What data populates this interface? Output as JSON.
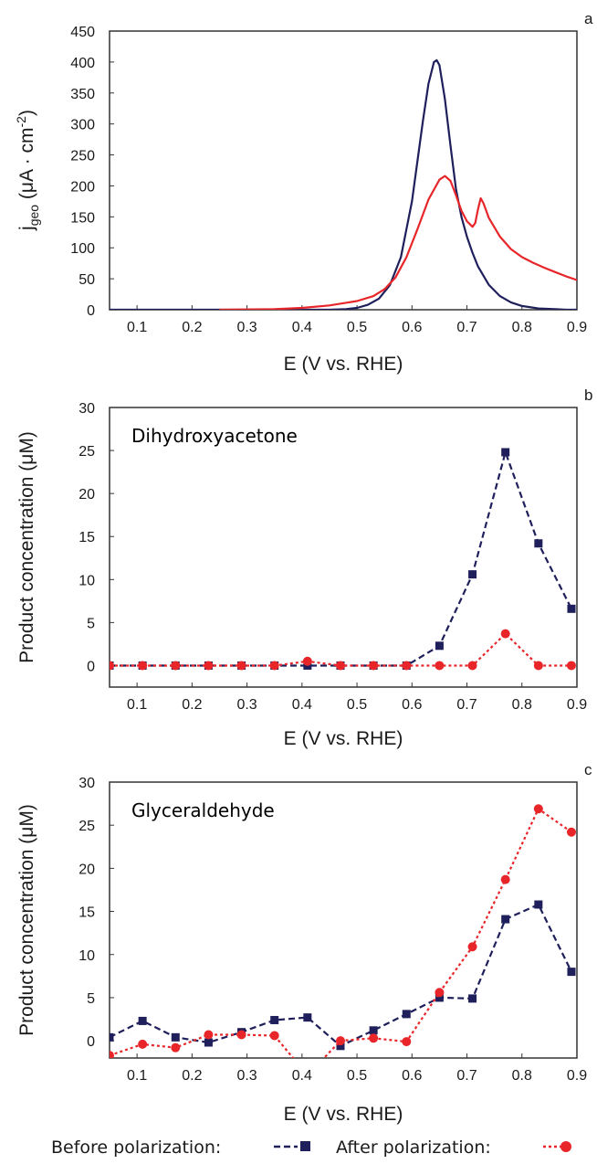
{
  "chart_data": [
    {
      "type": "line",
      "panel_label": "a",
      "xlabel": "E (V vs. RHE)",
      "ylabel": "j",
      "ylabel_sub": "geo",
      "ylabel_rest": " (μA · cm",
      "ylabel_sup": "-2",
      "ylabel_close": ")",
      "xlim": [
        0.05,
        0.9
      ],
      "ylim": [
        0,
        450
      ],
      "xticks": [
        "0.1",
        "0.2",
        "0.3",
        "0.4",
        "0.5",
        "0.6",
        "0.7",
        "0.8",
        "0.9"
      ],
      "yticks": [
        "0",
        "50",
        "100",
        "150",
        "200",
        "250",
        "300",
        "350",
        "400",
        "450"
      ],
      "series": [
        {
          "color": "#1f1f5c",
          "x": [
            0.05,
            0.45,
            0.48,
            0.5,
            0.52,
            0.54,
            0.56,
            0.58,
            0.6,
            0.61,
            0.62,
            0.63,
            0.64,
            0.645,
            0.65,
            0.66,
            0.67,
            0.68,
            0.69,
            0.7,
            0.71,
            0.72,
            0.74,
            0.76,
            0.78,
            0.8,
            0.83,
            0.86,
            0.88,
            0.9
          ],
          "y": [
            0,
            0,
            1,
            3,
            8,
            18,
            40,
            85,
            175,
            240,
            305,
            365,
            400,
            403,
            395,
            340,
            265,
            195,
            150,
            118,
            92,
            70,
            40,
            22,
            12,
            6,
            2,
            1,
            0,
            0
          ]
        },
        {
          "color": "#e8262a",
          "x": [
            0.25,
            0.35,
            0.4,
            0.45,
            0.5,
            0.53,
            0.55,
            0.57,
            0.59,
            0.61,
            0.63,
            0.65,
            0.66,
            0.67,
            0.68,
            0.69,
            0.7,
            0.71,
            0.715,
            0.72,
            0.725,
            0.73,
            0.74,
            0.76,
            0.78,
            0.8,
            0.82,
            0.84,
            0.86,
            0.88,
            0.9
          ],
          "y": [
            0,
            1,
            3,
            7,
            14,
            22,
            33,
            52,
            85,
            130,
            178,
            210,
            216,
            208,
            185,
            160,
            143,
            134,
            140,
            162,
            180,
            172,
            148,
            118,
            98,
            85,
            76,
            68,
            61,
            54,
            48
          ]
        }
      ]
    },
    {
      "type": "line",
      "panel_label": "b",
      "annotation": "Dihydroxyacetone",
      "xlabel": "E (V vs. RHE)",
      "ylabel": "Product concentration (μM)",
      "xlim": [
        0.05,
        0.9
      ],
      "ylim": [
        -2.5,
        30
      ],
      "xticks": [
        "0.1",
        "0.2",
        "0.3",
        "0.4",
        "0.5",
        "0.6",
        "0.7",
        "0.8",
        "0.9"
      ],
      "yticks": [
        "0",
        "5",
        "10",
        "15",
        "20",
        "25",
        "30"
      ],
      "series": [
        {
          "name": "Before polarization",
          "color": "#1f1f5c",
          "marker": "square",
          "x": [
            0.05,
            0.11,
            0.17,
            0.23,
            0.29,
            0.35,
            0.41,
            0.47,
            0.53,
            0.59,
            0.65,
            0.71,
            0.77,
            0.83,
            0.89
          ],
          "y": [
            0,
            0,
            0,
            0,
            0,
            0,
            0,
            0,
            0,
            0,
            2.3,
            10.6,
            24.8,
            14.2,
            6.6
          ]
        },
        {
          "name": "After polarization",
          "color": "#e8262a",
          "marker": "circle",
          "x": [
            0.05,
            0.11,
            0.17,
            0.23,
            0.29,
            0.35,
            0.41,
            0.47,
            0.53,
            0.59,
            0.65,
            0.71,
            0.77,
            0.83,
            0.89
          ],
          "y": [
            0,
            0,
            0,
            0,
            0,
            0,
            0.5,
            0,
            0,
            0,
            0,
            0,
            3.7,
            0,
            0
          ]
        }
      ]
    },
    {
      "type": "line",
      "panel_label": "c",
      "annotation": "Glyceraldehyde",
      "xlabel": "E (V vs. RHE)",
      "ylabel": "Product concentration (μM)",
      "xlim": [
        0.05,
        0.9
      ],
      "ylim": [
        -2,
        30
      ],
      "xticks": [
        "0.1",
        "0.2",
        "0.3",
        "0.4",
        "0.5",
        "0.6",
        "0.7",
        "0.8",
        "0.9"
      ],
      "yticks": [
        "0",
        "5",
        "10",
        "15",
        "20",
        "25",
        "30"
      ],
      "series": [
        {
          "name": "Before polarization",
          "color": "#1f1f5c",
          "marker": "square",
          "x": [
            0.05,
            0.11,
            0.17,
            0.23,
            0.29,
            0.35,
            0.41,
            0.47,
            0.53,
            0.59,
            0.65,
            0.71,
            0.77,
            0.83,
            0.89
          ],
          "y": [
            0.4,
            2.3,
            0.4,
            -0.2,
            1.0,
            2.4,
            2.7,
            -0.6,
            1.2,
            3.1,
            5.0,
            4.9,
            14.1,
            15.8,
            8.0
          ]
        },
        {
          "name": "After polarization",
          "color": "#e8262a",
          "marker": "circle",
          "x": [
            0.05,
            0.11,
            0.17,
            0.23,
            0.29,
            0.35,
            0.41,
            0.47,
            0.53,
            0.59,
            0.65,
            0.71,
            0.77,
            0.83,
            0.89
          ],
          "y": [
            -1.7,
            -0.4,
            -0.8,
            0.7,
            0.7,
            0.6,
            -4,
            0.0,
            0.3,
            -0.1,
            5.6,
            10.9,
            18.7,
            26.9,
            24.2
          ]
        }
      ]
    }
  ],
  "legend": {
    "before_label": "Before polarization:",
    "after_label": "After polarization:"
  }
}
